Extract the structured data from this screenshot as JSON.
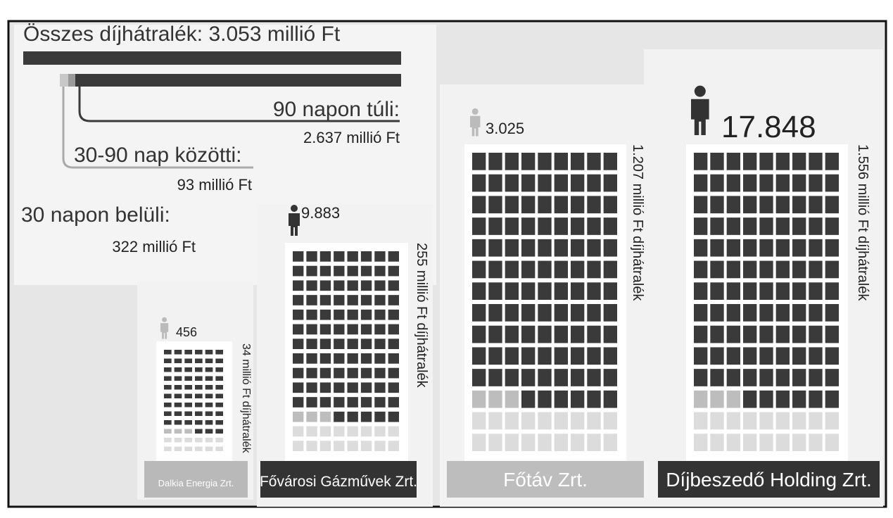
{
  "total": "Összes díjhátralék: 3.053 millió Ft",
  "breakdown": [
    {
      "label": "90 napon túli:",
      "amount": "2.637 millió Ft"
    },
    {
      "label": "30-90 nap közötti:",
      "amount": "93 millió Ft"
    },
    {
      "label": "30 napon belüli:",
      "amount": "322 millió Ft"
    }
  ],
  "companies": [
    {
      "name": "Dalkia Energia Zrt.",
      "customers": "456",
      "debt": "34 millió Ft díjhátralék"
    },
    {
      "name": "Fővárosi Gázművek Zrt.",
      "customers": "9.883",
      "debt": "255 millió Ft díjhátralék"
    },
    {
      "name": "Főtáv Zrt.",
      "customers": "3.025",
      "debt": "1.207 millió Ft díjhátralék"
    },
    {
      "name": "Díjbeszedő Holding Zrt.",
      "customers": "17.848",
      "debt": "1.556 millió Ft díjhátralék"
    }
  ]
}
